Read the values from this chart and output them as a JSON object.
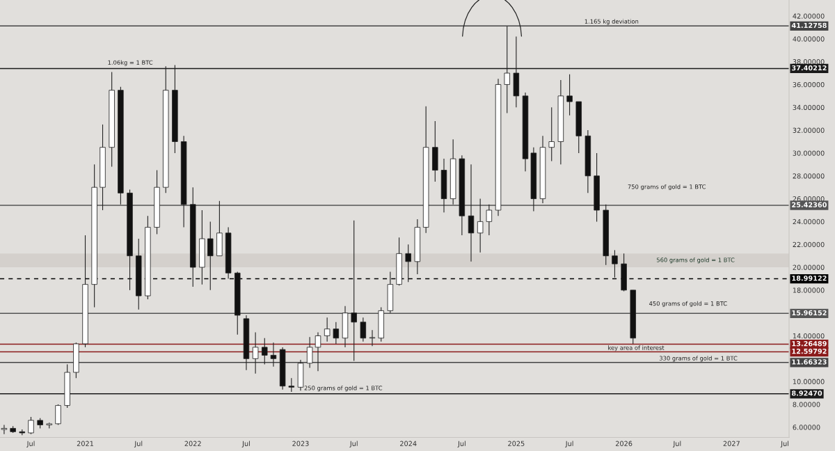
{
  "chart_data": {
    "type": "candlestick",
    "x": [
      "2020-04",
      "2020-05",
      "2020-06",
      "2020-07",
      "2020-08",
      "2020-09",
      "2020-10",
      "2020-11",
      "2020-12",
      "2021-01",
      "2021-02",
      "2021-03",
      "2021-04",
      "2021-05",
      "2021-06",
      "2021-07",
      "2021-08",
      "2021-09",
      "2021-10",
      "2021-11",
      "2021-12",
      "2022-01",
      "2022-02",
      "2022-03",
      "2022-04",
      "2022-05",
      "2022-06",
      "2022-07",
      "2022-08",
      "2022-09",
      "2022-10",
      "2022-11",
      "2022-12",
      "2023-01",
      "2023-02",
      "2023-03",
      "2023-04",
      "2023-05",
      "2023-06",
      "2023-07",
      "2023-08",
      "2023-09",
      "2023-10",
      "2023-11",
      "2023-12",
      "2024-01",
      "2024-02",
      "2024-03",
      "2024-04",
      "2024-05",
      "2024-06",
      "2024-07",
      "2024-08",
      "2024-09",
      "2024-10",
      "2024-11",
      "2024-12",
      "2025-01",
      "2025-02",
      "2025-03",
      "2025-04",
      "2025-05",
      "2025-06",
      "2025-07",
      "2025-08",
      "2025-09",
      "2025-10",
      "2025-11",
      "2025-12",
      "2026-01",
      "2026-02"
    ],
    "ohlc": [
      [
        5.8,
        6.2,
        5.4,
        5.9
      ],
      [
        5.9,
        6.1,
        5.5,
        5.6
      ],
      [
        5.6,
        5.8,
        5.3,
        5.5
      ],
      [
        5.5,
        6.9,
        5.4,
        6.6
      ],
      [
        6.6,
        6.8,
        5.9,
        6.2
      ],
      [
        6.2,
        6.4,
        5.9,
        6.3
      ],
      [
        6.3,
        8.0,
        6.2,
        7.9
      ],
      [
        7.9,
        11.5,
        7.7,
        10.8
      ],
      [
        10.8,
        13.4,
        10.3,
        13.3
      ],
      [
        13.3,
        22.8,
        13.0,
        18.5
      ],
      [
        18.5,
        29.0,
        16.5,
        27.0
      ],
      [
        27.0,
        32.5,
        25.0,
        30.5
      ],
      [
        30.5,
        37.1,
        28.8,
        35.5
      ],
      [
        35.5,
        35.8,
        25.5,
        26.5
      ],
      [
        26.5,
        26.8,
        18.0,
        21.0
      ],
      [
        21.0,
        22.5,
        16.3,
        17.5
      ],
      [
        17.5,
        24.5,
        17.2,
        23.5
      ],
      [
        23.5,
        28.5,
        22.9,
        27.0
      ],
      [
        27.0,
        37.6,
        26.5,
        35.5
      ],
      [
        35.5,
        37.7,
        30.0,
        31.0
      ],
      [
        31.0,
        31.5,
        23.5,
        25.5
      ],
      [
        25.5,
        27.0,
        18.3,
        20.0
      ],
      [
        20.0,
        25.0,
        18.5,
        22.5
      ],
      [
        22.5,
        24.0,
        18.0,
        21.0
      ],
      [
        21.0,
        25.8,
        21.0,
        23.0
      ],
      [
        23.0,
        23.5,
        19.0,
        19.5
      ],
      [
        19.5,
        19.6,
        14.1,
        15.8
      ],
      [
        15.5,
        15.8,
        11.0,
        12.0
      ],
      [
        12.0,
        14.3,
        10.7,
        13.0
      ],
      [
        13.0,
        13.8,
        11.5,
        12.3
      ],
      [
        12.3,
        13.4,
        11.3,
        12.0
      ],
      [
        12.8,
        13.0,
        9.3,
        9.6
      ],
      [
        9.6,
        10.3,
        9.1,
        9.5
      ],
      [
        9.5,
        11.9,
        9.2,
        11.6
      ],
      [
        11.6,
        13.9,
        11.2,
        13.0
      ],
      [
        13.0,
        14.3,
        10.9,
        14.0
      ],
      [
        14.0,
        15.6,
        13.5,
        14.6
      ],
      [
        14.6,
        15.2,
        13.3,
        13.8
      ],
      [
        13.8,
        16.6,
        13.0,
        16.0
      ],
      [
        16.0,
        24.1,
        11.8,
        15.2
      ],
      [
        15.2,
        15.6,
        13.5,
        13.8
      ],
      [
        13.8,
        14.5,
        13.1,
        13.8
      ],
      [
        13.8,
        16.5,
        13.5,
        16.2
      ],
      [
        16.2,
        19.6,
        16.0,
        18.5
      ],
      [
        18.5,
        22.6,
        18.4,
        21.2
      ],
      [
        21.2,
        22.0,
        18.7,
        20.5
      ],
      [
        20.5,
        24.2,
        19.4,
        23.5
      ],
      [
        23.5,
        34.1,
        23.0,
        30.5
      ],
      [
        30.5,
        32.8,
        27.5,
        28.5
      ],
      [
        28.5,
        29.5,
        24.8,
        26.0
      ],
      [
        26.0,
        31.2,
        25.5,
        29.5
      ],
      [
        29.5,
        29.8,
        22.8,
        24.5
      ],
      [
        24.5,
        29.0,
        20.5,
        23.0
      ],
      [
        23.0,
        26.0,
        21.3,
        24.0
      ],
      [
        24.0,
        25.5,
        22.8,
        25.0
      ],
      [
        25.0,
        36.5,
        24.5,
        36.0
      ],
      [
        36.0,
        41.1,
        33.5,
        37.0
      ],
      [
        37.0,
        40.2,
        34.0,
        35.0
      ],
      [
        35.0,
        35.3,
        28.4,
        29.5
      ],
      [
        30.0,
        30.5,
        24.9,
        26.0
      ],
      [
        26.0,
        31.5,
        25.6,
        30.5
      ],
      [
        30.5,
        34.0,
        29.3,
        31.0
      ],
      [
        31.0,
        36.4,
        29.0,
        35.0
      ],
      [
        35.0,
        36.9,
        33.3,
        34.5
      ],
      [
        34.5,
        34.5,
        30.0,
        31.5
      ],
      [
        31.5,
        32.0,
        26.5,
        28.0
      ],
      [
        28.0,
        30.0,
        24.0,
        25.0
      ],
      [
        25.0,
        25.5,
        20.2,
        21.0
      ],
      [
        21.0,
        21.5,
        19.1,
        20.3
      ],
      [
        20.3,
        21.2,
        17.9,
        18.0
      ],
      [
        18.0,
        18.0,
        13.3,
        13.8
      ]
    ],
    "xlim": [
      "2020-03-18",
      "2027-07-15"
    ],
    "xticks": [
      {
        "value": "2020-07",
        "label": "Jul"
      },
      {
        "value": "2021-01",
        "label": "2021"
      },
      {
        "value": "2021-07",
        "label": "Jul"
      },
      {
        "value": "2022-01",
        "label": "2022"
      },
      {
        "value": "2022-07",
        "label": "Jul"
      },
      {
        "value": "2023-01",
        "label": "2023"
      },
      {
        "value": "2023-07",
        "label": "Jul"
      },
      {
        "value": "2024-01",
        "label": "2024"
      },
      {
        "value": "2024-07",
        "label": "Jul"
      },
      {
        "value": "2025-01",
        "label": "2025"
      },
      {
        "value": "2025-07",
        "label": "Jul"
      },
      {
        "value": "2026-01",
        "label": "2026"
      },
      {
        "value": "2026-07",
        "label": "Jul"
      },
      {
        "value": "2027-01",
        "label": "2027"
      },
      {
        "value": "2027-07",
        "label": "Jul"
      }
    ],
    "ylim": [
      5.1,
      43.4
    ],
    "yticks": [
      {
        "value": 6,
        "label": "6.00000"
      },
      {
        "value": 8,
        "label": "8.00000"
      },
      {
        "value": 10,
        "label": "10.00000"
      },
      {
        "value": 14,
        "label": "14.00000"
      },
      {
        "value": 18,
        "label": "18.00000"
      },
      {
        "value": 20,
        "label": "20.00000"
      },
      {
        "value": 22,
        "label": "22.00000"
      },
      {
        "value": 24,
        "label": "24.00000"
      },
      {
        "value": 26,
        "label": "26.00000"
      },
      {
        "value": 28,
        "label": "28.00000"
      },
      {
        "value": 30,
        "label": "30.00000"
      },
      {
        "value": 32,
        "label": "32.00000"
      },
      {
        "value": 34,
        "label": "34.00000"
      },
      {
        "value": 36,
        "label": "36.00000"
      },
      {
        "value": 38,
        "label": "38.00000"
      },
      {
        "value": 40,
        "label": "40.00000"
      },
      {
        "value": 42,
        "label": "42.00000"
      }
    ],
    "ref_lines": [
      {
        "axis": "y",
        "value": 41.12758,
        "label": "41.12758",
        "color": "#444444"
      },
      {
        "axis": "y",
        "value": 37.40212,
        "label": "37.40212",
        "color": "#1a1a1a"
      },
      {
        "axis": "y",
        "value": 25.4236,
        "label": "25.42360",
        "color": "#555555"
      },
      {
        "axis": "y",
        "value": 18.99122,
        "label": "18.99122",
        "color": "#000000",
        "line_style": "dashed"
      },
      {
        "axis": "y",
        "value": 15.96152,
        "label": "15.96152",
        "color": "#555555"
      },
      {
        "axis": "y",
        "value": 13.26489,
        "label": "13.26489",
        "color": "#8b1a1a"
      },
      {
        "axis": "y",
        "value": 12.59792,
        "label": "12.59792",
        "color": "#8b1a1a"
      },
      {
        "axis": "y",
        "value": 11.66323,
        "label": "11.66323",
        "color": "#444444"
      },
      {
        "axis": "y",
        "value": 8.9247,
        "label": "8.92470",
        "color": "#1a1a1a"
      }
    ],
    "annotations": [
      "1.165 kg deviation",
      "1.06kg = 1 BTC",
      "750 grams of gold = 1 BTC",
      "450 grams of gold = 1 BTC",
      "key area of interest",
      "330 grams of gold = 1 BTC",
      "250 grams of gold = 1 BTC"
    ],
    "bands": [
      {
        "axis": "y",
        "from": 20.0,
        "to": 21.2,
        "label": "560 grams of gold = 1 BTC",
        "color": "#d4d0cc"
      }
    ],
    "grid": false
  }
}
